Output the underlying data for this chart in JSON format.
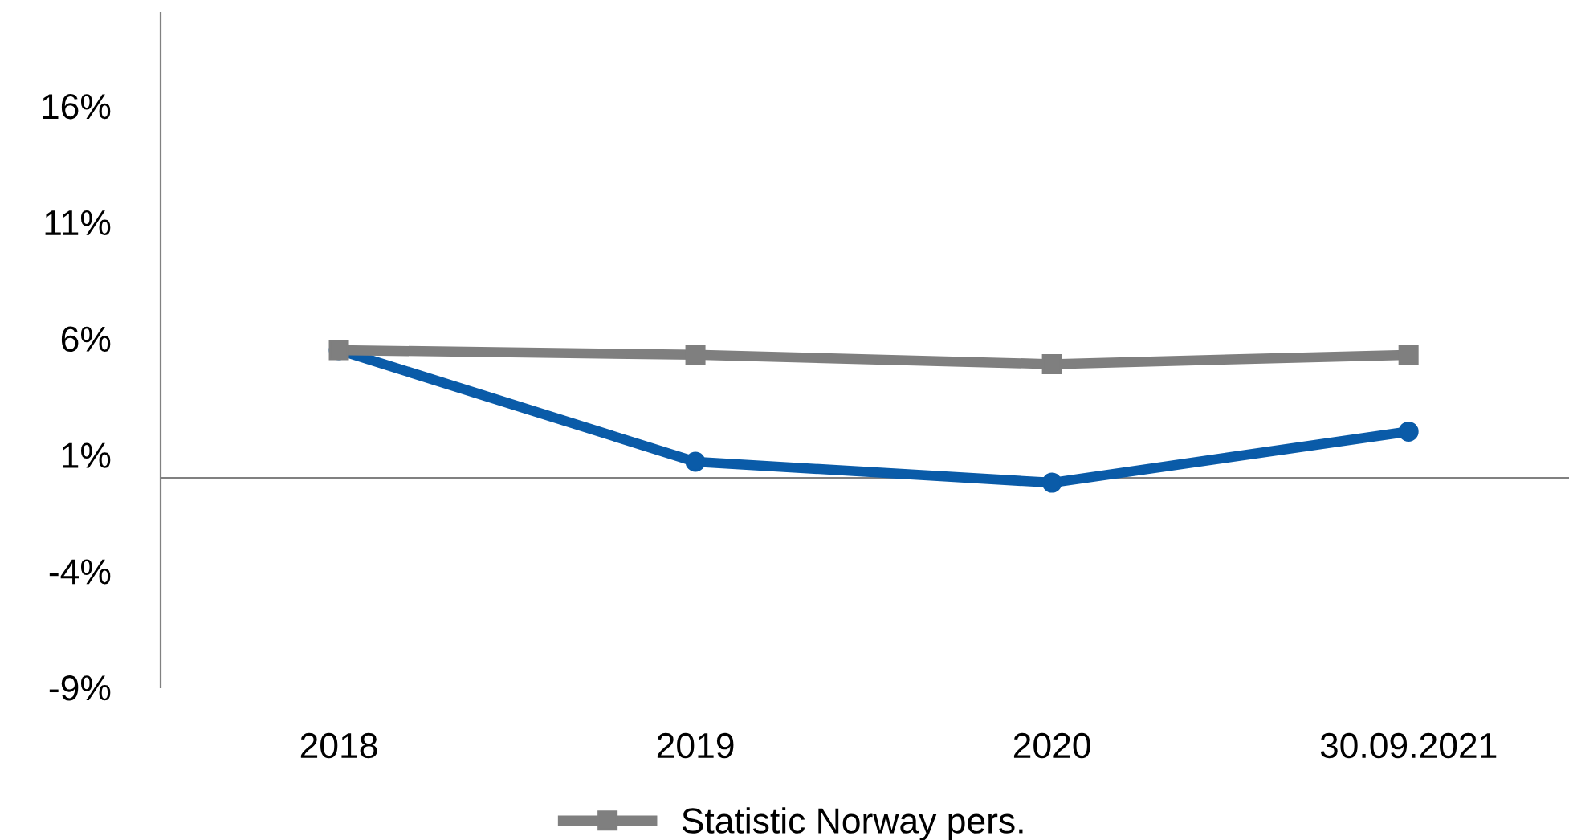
{
  "chart_data": {
    "type": "line",
    "categories": [
      "2018",
      "2019",
      "2020",
      "30.09.2021"
    ],
    "series": [
      {
        "color": "#0a5ba8",
        "values": [
          5.5,
          0.7,
          -0.2,
          2.0
        ],
        "marker": "circle"
      },
      {
        "name": "Statistic Norway pers.",
        "color": "#7f7f7f",
        "values": [
          5.5,
          5.3,
          4.9,
          5.3
        ],
        "marker": "square"
      }
    ],
    "ylim": [
      -9,
      20
    ],
    "yticks": [
      {
        "value": -9,
        "label": "-9%"
      },
      {
        "value": -4,
        "label": "-4%"
      },
      {
        "value": 1,
        "label": "1%"
      },
      {
        "value": 6,
        "label": "6%"
      },
      {
        "value": 11,
        "label": "11%"
      },
      {
        "value": 16,
        "label": "16%"
      }
    ],
    "grid": false,
    "legend": "bottom",
    "line_style": "solid"
  }
}
